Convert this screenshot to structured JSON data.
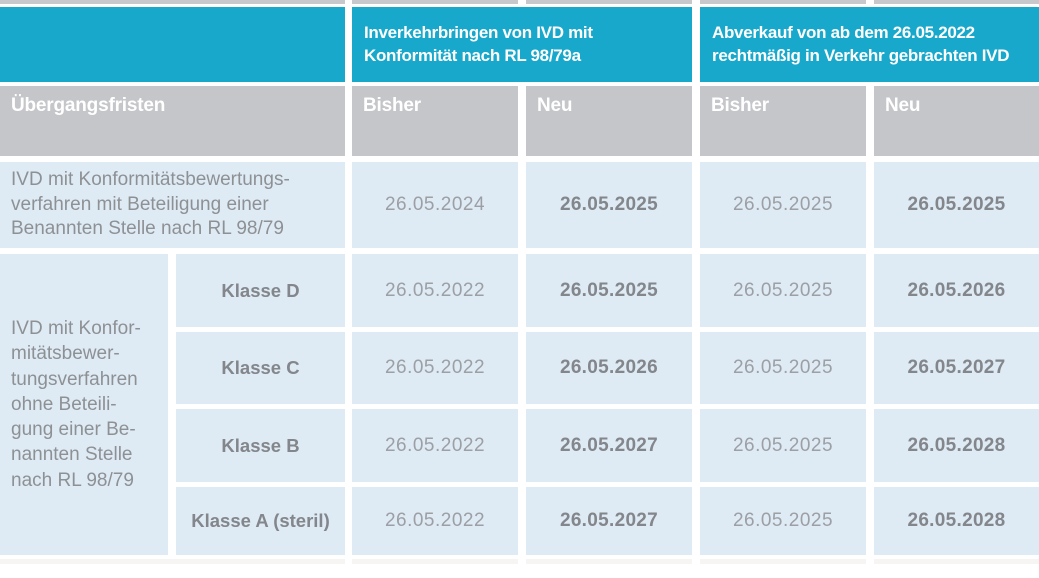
{
  "colors": {
    "teal_accent": "#18a8cc",
    "header_gray": "#c5c6ca",
    "cell_light_blue": "#deeaf4",
    "label_text_gray": "#8e9194",
    "date_text_gray": "#9c9fa3",
    "bold_text_gray": "#83868a",
    "header_text": "#ffffff"
  },
  "table": {
    "group_headers": {
      "placing": "Inverkehrbringen von IVD mit\nKonformität nach RL 98/79a",
      "selloff": "Abverkauf von ab dem 26.05.2022\nrechtmäßig in Verkehr gebrachten IVD"
    },
    "header": {
      "title": "Übergangsfristen",
      "bisher1": "Bisher",
      "neu1": "Neu",
      "bisher2": "Bisher",
      "neu2": "Neu"
    },
    "row1": {
      "label": "IVD mit Konformitätsbewertungs-\nverfahren mit Beteiligung einer\nBenannten Stelle nach RL 98/79",
      "dates": [
        "26.05.2024",
        "26.05.2025",
        "26.05.2025",
        "26.05.2025"
      ]
    },
    "group": {
      "label": "IVD mit Konfor-\nmitätsbewer-\ntungsverfahren\nohne Beteili-\ngung einer Be-\nnannten Stelle\nnach RL 98/79",
      "rows": [
        {
          "klasse": "Klasse D",
          "dates": [
            "26.05.2022",
            "26.05.2025",
            "26.05.2025",
            "26.05.2026"
          ]
        },
        {
          "klasse": "Klasse C",
          "dates": [
            "26.05.2022",
            "26.05.2026",
            "26.05.2025",
            "26.05.2027"
          ]
        },
        {
          "klasse": "Klasse B",
          "dates": [
            "26.05.2022",
            "26.05.2027",
            "26.05.2025",
            "26.05.2028"
          ]
        },
        {
          "klasse": "Klasse A (steril)",
          "dates": [
            "26.05.2022",
            "26.05.2027",
            "26.05.2025",
            "26.05.2028"
          ]
        }
      ]
    }
  },
  "chart_data": {
    "type": "table",
    "title": "Übergangsfristen",
    "column_groups": [
      "Inverkehrbringen von IVD mit Konformität nach RL 98/79a",
      "Abverkauf von ab dem 26.05.2022 rechtmäßig in Verkehr gebrachten IVD"
    ],
    "columns": [
      "Übergangsfristen",
      "Bisher",
      "Neu",
      "Bisher",
      "Neu"
    ],
    "rows": [
      [
        "IVD mit Konformitätsbewertungsverfahren mit Beteiligung einer Benannten Stelle nach RL 98/79",
        "26.05.2024",
        "26.05.2025",
        "26.05.2025",
        "26.05.2025"
      ],
      [
        "IVD mit Konformitätsbewertungsverfahren ohne Beteiligung einer Benannten Stelle nach RL 98/79 – Klasse D",
        "26.05.2022",
        "26.05.2025",
        "26.05.2025",
        "26.05.2026"
      ],
      [
        "IVD mit Konformitätsbewertungsverfahren ohne Beteiligung einer Benannten Stelle nach RL 98/79 – Klasse C",
        "26.05.2022",
        "26.05.2026",
        "26.05.2025",
        "26.05.2027"
      ],
      [
        "IVD mit Konformitätsbewertungsverfahren ohne Beteiligung einer Benannten Stelle nach RL 98/79 – Klasse B",
        "26.05.2022",
        "26.05.2027",
        "26.05.2025",
        "26.05.2028"
      ],
      [
        "IVD mit Konformitätsbewertungsverfahren ohne Beteiligung einer Benannten Stelle nach RL 98/79 – Klasse A (steril)",
        "26.05.2022",
        "26.05.2027",
        "26.05.2025",
        "26.05.2028"
      ],
      [
        "bold_cells_note",
        "Neu-Spalten fett dargestellt"
      ]
    ],
    "layout": {
      "grid": "white gaps between cells",
      "legend_position": "none"
    }
  }
}
